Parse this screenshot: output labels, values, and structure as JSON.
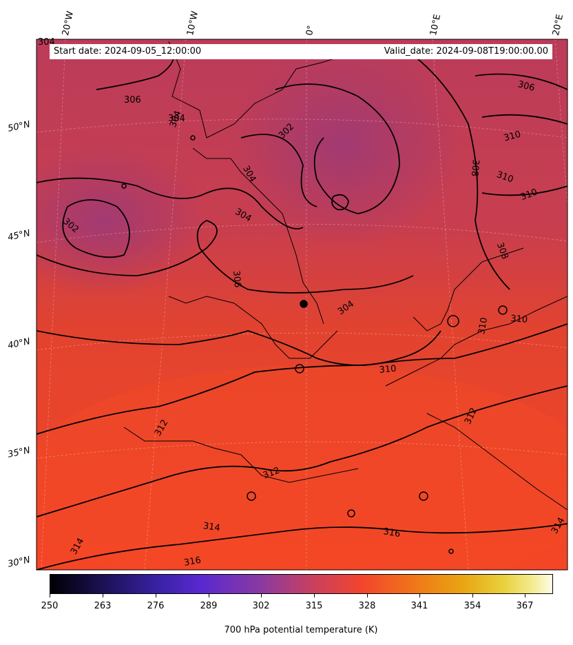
{
  "header": {
    "start_date": "Start date: 2024-09-05_12:00:00",
    "valid_date": "Valid_date: 2024-09-08T19:00:00.00"
  },
  "map": {
    "variable": "700 hPa potential temperature (K)",
    "colormap": "CMRmap-like (black-purple-red-orange-yellow-white)",
    "longitude_labels": [
      "20°W",
      "10°W",
      "0°",
      "10°E",
      "20°E"
    ],
    "latitude_labels": [
      "50°N",
      "45°N",
      "40°N",
      "35°N",
      "30°N"
    ],
    "contour_labels": [
      "304",
      "306",
      "304",
      "302",
      "304",
      "304",
      "302",
      "306",
      "304",
      "310",
      "308",
      "310",
      "310",
      "308",
      "306",
      "310",
      "310",
      "304",
      "310",
      "312",
      "312",
      "312",
      "314",
      "314",
      "316",
      "316",
      "314"
    ],
    "colors": {
      "cool": "#b23d62",
      "mid": "#d6403d",
      "warm": "#f04428"
    }
  },
  "colorbar": {
    "ticks": [
      "250",
      "263",
      "276",
      "289",
      "302",
      "315",
      "328",
      "341",
      "354",
      "367"
    ],
    "label": "700 hPa potential temperature (K)"
  }
}
